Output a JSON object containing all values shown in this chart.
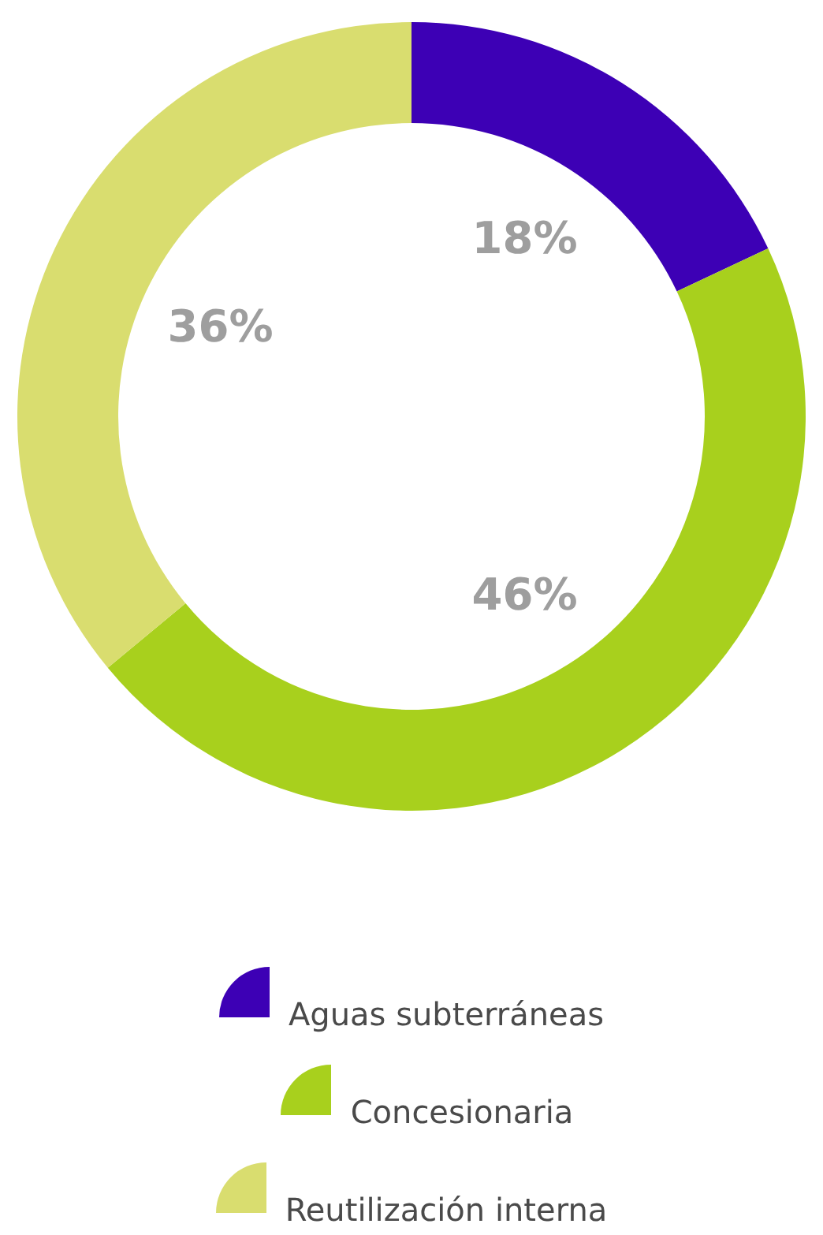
{
  "chart_data": {
    "type": "donut",
    "categories": [
      "Aguas subterráneas",
      "Concesionaria",
      "Reutilización interna"
    ],
    "values": [
      18,
      46,
      36
    ],
    "colors": [
      "#3d00b5",
      "#a8d01d",
      "#d9dd6f"
    ],
    "value_labels": [
      "18%",
      "46%",
      "36%"
    ],
    "legend": "bottom"
  }
}
